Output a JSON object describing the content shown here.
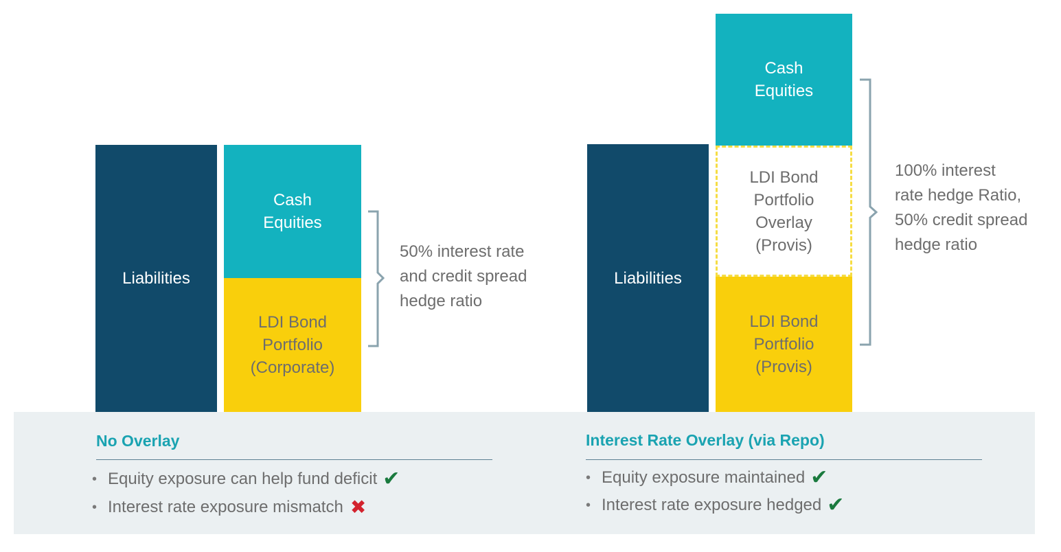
{
  "left": {
    "liabilities": "Liabilities",
    "cash": "Cash\nEquities",
    "bond": "LDI Bond\nPortfolio\n(Corporate)",
    "note": "50% interest rate\nand credit spread\nhedge ratio",
    "heading": "No Overlay",
    "bullets": [
      {
        "text": "Equity exposure can help fund deficit",
        "mark": "✔"
      },
      {
        "text": "Interest rate exposure mismatch",
        "mark": "✖"
      }
    ]
  },
  "right": {
    "liabilities": "Liabilities",
    "cash": "Cash\nEquities",
    "overlay": "LDI Bond\nPortfolio\nOverlay\n(Provis)",
    "bond": "LDI Bond\nPortfolio\n(Provis)",
    "note": "100% interest\nrate hedge Ratio,\n50% credit spread\nhedge ratio",
    "heading": "Interest Rate Overlay (via Repo)",
    "bullets": [
      {
        "text": "Equity exposure maintained",
        "mark": "✔"
      },
      {
        "text": "Interest rate exposure hedged",
        "mark": "✔"
      }
    ]
  },
  "colors": {
    "liabilities": "#114a6a",
    "cash": "#13b2bf",
    "bond": "#f9cf0c",
    "overlay_border": "#f6dd44",
    "panel": "#ebf0f2",
    "heading": "#1aa3b1",
    "check": "#1a7a3e",
    "cross": "#d3232e"
  }
}
